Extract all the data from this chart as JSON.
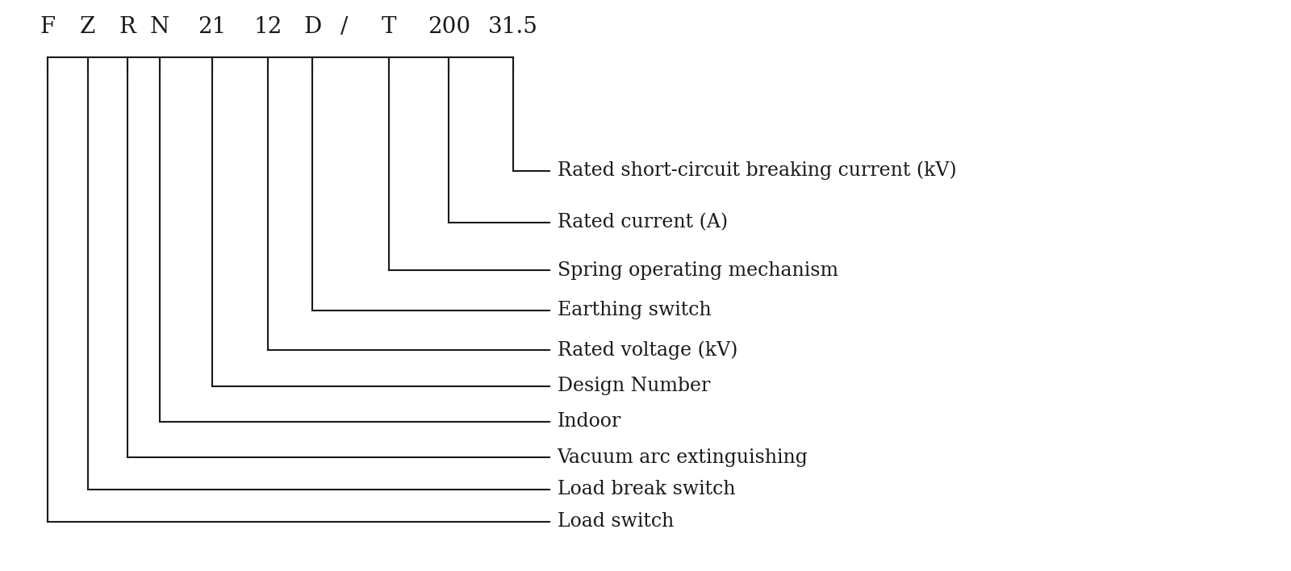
{
  "model_chars": [
    "F",
    "Z",
    "R",
    "N",
    "21",
    "12",
    "D",
    "/",
    "T",
    "200",
    "31.5"
  ],
  "descriptions_top_to_bottom": [
    "Rated short-circuit breaking current (kV)",
    "Rated current (A)",
    "Spring operating mechanism",
    "Earthing switch",
    "Rated voltage (kV)",
    "Design Number",
    "Indoor",
    "Vacuum arc extinguishing",
    "Load break switch",
    "Load switch"
  ],
  "char_indices_for_desc_top_to_bottom": [
    10,
    9,
    8,
    6,
    5,
    4,
    3,
    2,
    1,
    0
  ],
  "bg_color": "#ffffff",
  "line_color": "#1a1a1a",
  "text_color": "#1a1a1a",
  "header_fontsize": 20,
  "label_fontsize": 17,
  "figsize": [
    16.0,
    7.08
  ],
  "dpi": 100
}
